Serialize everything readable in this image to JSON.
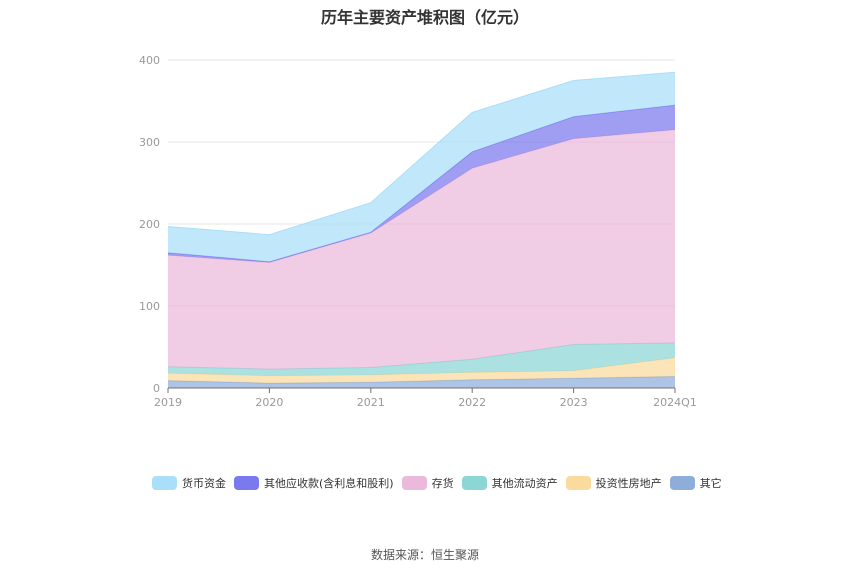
{
  "chart_data": {
    "type": "area",
    "stacked": true,
    "title": "历年主要资产堆积图（亿元）",
    "categories": [
      "2019",
      "2020",
      "2021",
      "2022",
      "2023",
      "2024Q1"
    ],
    "ylim": [
      0,
      400
    ],
    "yticks": [
      0,
      100,
      200,
      300,
      400
    ],
    "grid": true,
    "legend_position": "bottom",
    "series": [
      {
        "name": "其它",
        "color": "#8FADDB",
        "values": [
          9,
          6,
          7,
          10,
          12,
          14
        ]
      },
      {
        "name": "投资性房地产",
        "color": "#FBDA9E",
        "values": [
          9,
          9,
          9,
          9,
          9,
          23
        ]
      },
      {
        "name": "其他流动资产",
        "color": "#8CD6D6",
        "values": [
          8,
          8,
          9,
          16,
          32,
          18
        ]
      },
      {
        "name": "存货",
        "color": "#EBB9DB",
        "values": [
          136,
          130,
          164,
          233,
          251,
          260
        ]
      },
      {
        "name": "其他应收款(含利息和股利)",
        "color": "#7B79EE",
        "values": [
          3,
          1,
          1,
          20,
          27,
          30
        ]
      },
      {
        "name": "货币资金",
        "color": "#A9DFF8",
        "values": [
          32,
          33,
          36,
          48,
          44,
          40
        ]
      }
    ],
    "legend_order": [
      "货币资金",
      "其他应收款(含利息和股利)",
      "存货",
      "其他流动资产",
      "投资性房地产",
      "其它"
    ]
  },
  "footer": {
    "source": "数据来源：恒生聚源"
  }
}
